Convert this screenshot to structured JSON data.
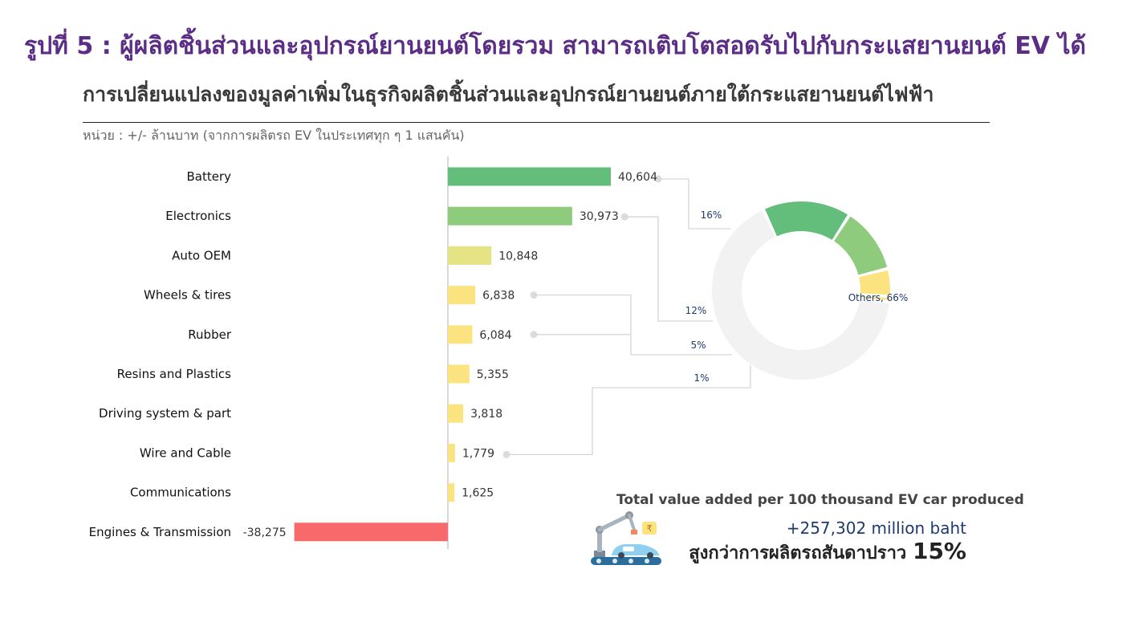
{
  "header": {
    "figure_title": "รูปที่ 5 : ผู้ผลิตชิ้นส่วนและอุปกรณ์ยานยนต์โดยรวม สามารถเติบโตสอดรับไปกับกระแสยานยนต์ EV ได้",
    "subtitle": "การเปลี่ยนแปลงของมูลค่าเพิ่มในธุรกิจผลิตชิ้นส่วนและอุปกรณ์ยานยนต์ภายใต้กระแสยานยนต์ไฟฟ้า",
    "unit": "หน่วย : +/- ล้านบาท (จากการผลิตรถ EV ในประเทศทุก ๆ 1 แสนคัน)"
  },
  "chart_data": [
    {
      "type": "bar",
      "orientation": "horizontal",
      "categories": [
        "Battery",
        "Electronics",
        "Auto OEM",
        "Wheels & tires",
        "Rubber",
        "Resins and Plastics",
        "Driving system & part",
        "Wire and Cable",
        "Communications",
        "Engines & Transmission"
      ],
      "values": [
        40604,
        30973,
        10848,
        6838,
        6084,
        5355,
        3818,
        1779,
        1625,
        -38275
      ],
      "value_labels": [
        "40,604",
        "30,973",
        "10,848",
        "6,838",
        "6,084",
        "5,355",
        "3,818",
        "1,779",
        "1,625",
        "-38,275"
      ],
      "colors": [
        "#63be7b",
        "#8fcb7d",
        "#e6e385",
        "#fbe37f",
        "#fbe37f",
        "#fbe37f",
        "#fbe37f",
        "#fbe37f",
        "#fbe37f",
        "#f8696b"
      ],
      "xlim": [
        -41000,
        41000
      ]
    },
    {
      "type": "pie",
      "style": "donut",
      "slices": [
        {
          "label": "16%",
          "value": 16,
          "color": "#63be7b"
        },
        {
          "label": "12%",
          "value": 12,
          "color": "#8fcb7d"
        },
        {
          "label": "5%",
          "value": 5,
          "color": "#fbe37f"
        },
        {
          "label": "1%",
          "value": 1,
          "color": "#fbe37f"
        },
        {
          "label": "Others, 66%",
          "value": 66,
          "color": "#f2f2f2"
        }
      ]
    }
  ],
  "summary": {
    "title": "Total value added per 100 thousand EV car produced",
    "value": "+257,302 million baht",
    "comparison_text": "สูงกว่าการผลิตรถสันดาปราว",
    "comparison_pct": "15%"
  },
  "icons": {
    "illustration": "robot-arm-car-assembly-icon"
  }
}
